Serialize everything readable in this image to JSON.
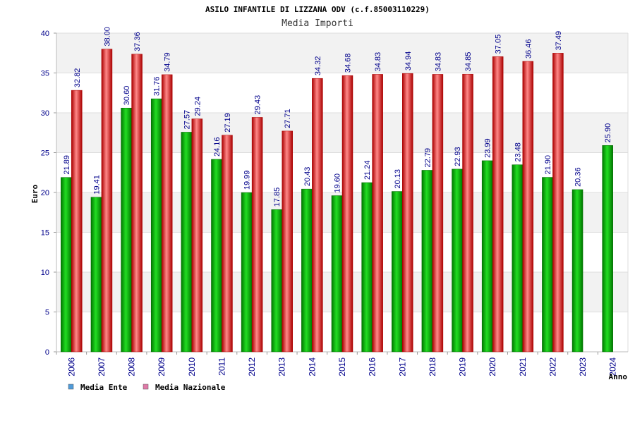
{
  "chart_data": {
    "type": "bar",
    "title": "ASILO INFANTILE DI LIZZANA ODV (c.f.85003110229)",
    "subtitle": "Media Importi",
    "ylabel": "Euro",
    "xlabel": "Anno",
    "ylim": [
      0,
      40
    ],
    "yticks": [
      "0",
      "5",
      "10",
      "15",
      "20",
      "25",
      "30",
      "35",
      "40"
    ],
    "categories": [
      "2006",
      "2007",
      "2008",
      "2009",
      "2010",
      "2011",
      "2012",
      "2013",
      "2014",
      "2015",
      "2016",
      "2017",
      "2018",
      "2019",
      "2020",
      "2021",
      "2022",
      "2023",
      "2024"
    ],
    "series": [
      {
        "name": "Media Ente",
        "legend_color": "#4f9bd9",
        "bar_color": "#00aa00",
        "values": [
          21.89,
          19.41,
          30.6,
          31.76,
          27.57,
          24.16,
          19.99,
          17.85,
          20.43,
          19.6,
          21.24,
          20.13,
          22.79,
          22.93,
          23.99,
          23.48,
          21.9,
          20.36,
          25.9
        ],
        "labels": [
          "21.89",
          "19.41",
          "30.60",
          "31.76",
          "27.57",
          "24.16",
          "19.99",
          "17.85",
          "20.43",
          "19.60",
          "21.24",
          "20.13",
          "22.79",
          "22.93",
          "23.99",
          "23.48",
          "21.90",
          "20.36",
          "25.90"
        ]
      },
      {
        "name": "Media Nazionale",
        "legend_color": "#e07aa8",
        "bar_color": "#dd2222",
        "values": [
          32.82,
          38.0,
          37.36,
          34.79,
          29.24,
          27.19,
          29.43,
          27.71,
          34.32,
          34.68,
          34.83,
          34.94,
          34.83,
          34.85,
          37.05,
          36.46,
          37.49,
          null,
          null
        ],
        "labels": [
          "32.82",
          "38.00",
          "37.36",
          "34.79",
          "29.24",
          "27.19",
          "29.43",
          "27.71",
          "34.32",
          "34.68",
          "34.83",
          "34.94",
          "34.83",
          "34.85",
          "37.05",
          "36.46",
          "37.49",
          null,
          null
        ]
      }
    ]
  }
}
